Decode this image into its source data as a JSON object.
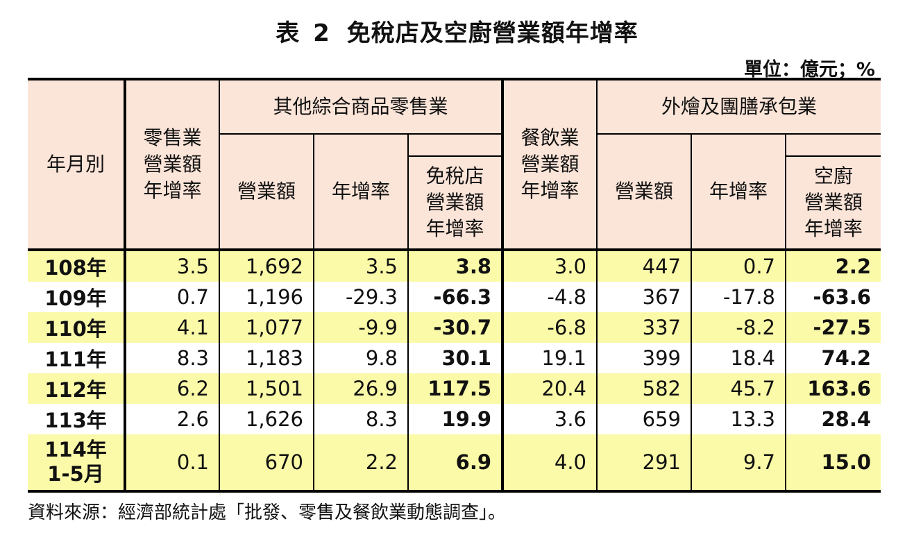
{
  "title": {
    "prefix": "表",
    "number": "2",
    "text": "免稅店及空廚營業額年增率"
  },
  "unit": "單位：億元；%",
  "headers": {
    "year": "年月別",
    "retail": [
      "零售業",
      "營業額",
      "年增率"
    ],
    "group1": "其他綜合商品零售業",
    "g1_revenue": "營業額",
    "g1_growth": "年增率",
    "g1_dutyfree": [
      "免稅店",
      "營業額",
      "年增率"
    ],
    "food": [
      "餐飲業",
      "營業額",
      "年增率"
    ],
    "group2": "外燴及團膳承包業",
    "g2_revenue": "營業額",
    "g2_growth": "年增率",
    "g2_catering": [
      "空廚",
      "營業額",
      "年增率"
    ]
  },
  "rows": [
    {
      "year": "108年",
      "sub": "",
      "retail": "3.5",
      "g1_rev": "1,692",
      "g1_gr": "3.5",
      "dutyfree": "3.8",
      "food": "3.0",
      "g2_rev": "447",
      "g2_gr": "0.7",
      "catering": "2.2"
    },
    {
      "year": "109年",
      "sub": "",
      "retail": "0.7",
      "g1_rev": "1,196",
      "g1_gr": "-29.3",
      "dutyfree": "-66.3",
      "food": "-4.8",
      "g2_rev": "367",
      "g2_gr": "-17.8",
      "catering": "-63.6"
    },
    {
      "year": "110年",
      "sub": "",
      "retail": "4.1",
      "g1_rev": "1,077",
      "g1_gr": "-9.9",
      "dutyfree": "-30.7",
      "food": "-6.8",
      "g2_rev": "337",
      "g2_gr": "-8.2",
      "catering": "-27.5"
    },
    {
      "year": "111年",
      "sub": "",
      "retail": "8.3",
      "g1_rev": "1,183",
      "g1_gr": "9.8",
      "dutyfree": "30.1",
      "food": "19.1",
      "g2_rev": "399",
      "g2_gr": "18.4",
      "catering": "74.2"
    },
    {
      "year": "112年",
      "sub": "",
      "retail": "6.2",
      "g1_rev": "1,501",
      "g1_gr": "26.9",
      "dutyfree": "117.5",
      "food": "20.4",
      "g2_rev": "582",
      "g2_gr": "45.7",
      "catering": "163.6"
    },
    {
      "year": "113年",
      "sub": "",
      "retail": "2.6",
      "g1_rev": "1,626",
      "g1_gr": "8.3",
      "dutyfree": "19.9",
      "food": "3.6",
      "g2_rev": "659",
      "g2_gr": "13.3",
      "catering": "28.4"
    },
    {
      "year": "114年",
      "sub": "1-5月",
      "retail": "0.1",
      "g1_rev": "670",
      "g1_gr": "2.2",
      "dutyfree": "6.9",
      "food": "4.0",
      "g2_rev": "291",
      "g2_gr": "9.7",
      "catering": "15.0"
    }
  ],
  "source": "資料來源：經濟部統計處「批發、零售及餐飲業動態調查」。",
  "colors": {
    "header_bg": "#fbe4d8",
    "highlight_row": "#fafaa8",
    "rule": "#000000"
  }
}
